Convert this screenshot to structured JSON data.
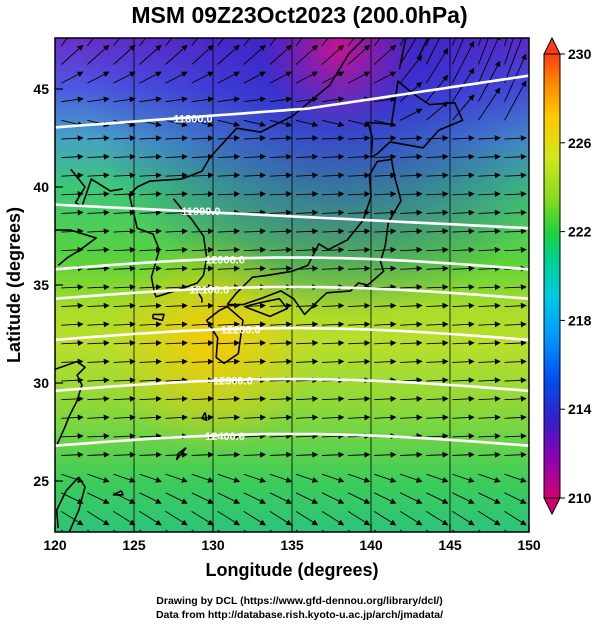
{
  "title": "MSM 09Z23Oct2023 (200.0hPa)",
  "axes": {
    "xlabel": "Longitude (degrees)",
    "ylabel": "Latitude  (degrees)",
    "xlim": [
      120,
      150
    ],
    "ylim": [
      22.4,
      47.6
    ],
    "xticks": [
      "120",
      "125",
      "130",
      "135",
      "140",
      "145",
      "150"
    ],
    "yticks": [
      "25",
      "30",
      "35",
      "40",
      "45"
    ]
  },
  "colorbar": {
    "min": 210,
    "max": 230,
    "ticks": [
      "230",
      "226",
      "222",
      "218",
      "214",
      "210"
    ],
    "colors": [
      "#d0006f",
      "#8c00b4",
      "#3020c8",
      "#0078ff",
      "#00c8e6",
      "#00d28c",
      "#22d23c",
      "#8cdc1e",
      "#d2e61e",
      "#ffc800",
      "#ff8c00",
      "#ff3c14"
    ]
  },
  "contours": [
    {
      "label": "11800.0",
      "lat": 44.0
    },
    {
      "label": "11900.0",
      "lat": 38.5
    },
    {
      "label": "12000.0",
      "lat": 35.8
    },
    {
      "label": "12100.0",
      "lat": 34.3
    },
    {
      "label": "12200.0",
      "lat": 32.2
    },
    {
      "label": "12300.0",
      "lat": 29.6
    },
    {
      "label": "12400.0",
      "lat": 26.8
    }
  ],
  "credits": {
    "line1": "Drawing by DCL (https://www.gfd-dennou.org/library/dcl/)",
    "line2": "Data from http://database.rish.kyoto-u.ac.jp/arch/jmadata/"
  }
}
